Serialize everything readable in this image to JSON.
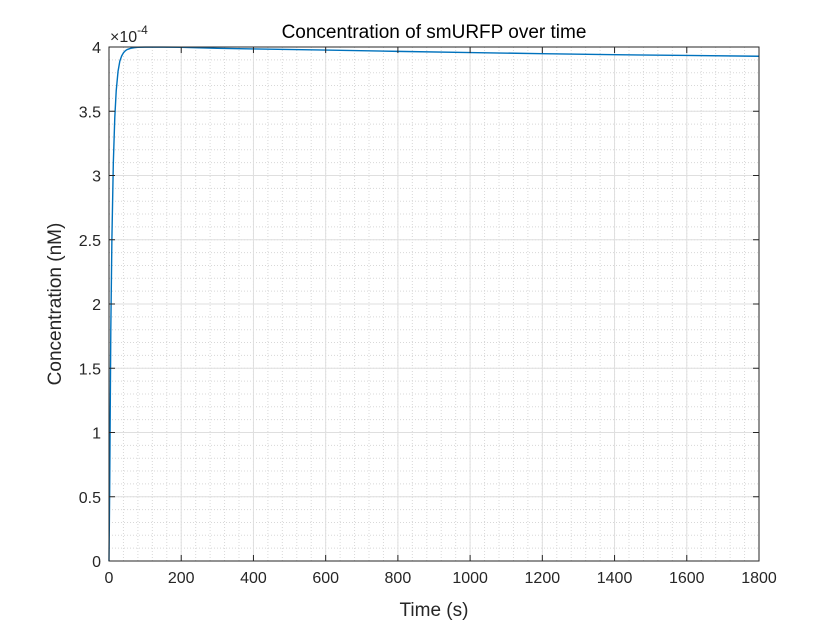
{
  "chart_data": {
    "type": "line",
    "title": "Concentration of smURFP over time",
    "xlabel": "Time (s)",
    "ylabel": "Concentration (nM)",
    "xlim": [
      0,
      1800
    ],
    "ylim": [
      0,
      4
    ],
    "xticks": [
      0,
      200,
      400,
      600,
      800,
      1000,
      1200,
      1400,
      1600,
      1800
    ],
    "xtick_labels": [
      "0",
      "200",
      "400",
      "600",
      "800",
      "1000",
      "1200",
      "1400",
      "1600",
      "1800"
    ],
    "yticks": [
      0,
      0.5,
      1,
      1.5,
      2,
      2.5,
      3,
      3.5,
      4
    ],
    "ytick_labels": [
      "0",
      "0.5",
      "1",
      "1.5",
      "2",
      "2.5",
      "3",
      "3.5",
      "4"
    ],
    "y_exponent_base": "×10",
    "y_exponent_power": "-4",
    "grid": "major and minor",
    "line_color": "#0072BD",
    "series": [
      {
        "x": [
          0,
          2,
          5,
          8,
          12,
          16,
          20,
          25,
          30,
          35,
          40,
          45,
          50,
          55,
          60,
          70,
          80,
          100,
          150,
          200,
          300,
          400,
          600,
          800,
          1000,
          1200,
          1400,
          1600,
          1800
        ],
        "values": [
          0,
          0.6,
          1.8,
          2.5,
          3.1,
          3.45,
          3.66,
          3.81,
          3.89,
          3.93,
          3.955,
          3.97,
          3.98,
          3.985,
          3.99,
          3.995,
          3.998,
          3.999,
          3.999,
          3.998,
          3.99,
          3.985,
          3.976,
          3.966,
          3.957,
          3.948,
          3.94,
          3.934,
          3.928
        ]
      }
    ]
  }
}
